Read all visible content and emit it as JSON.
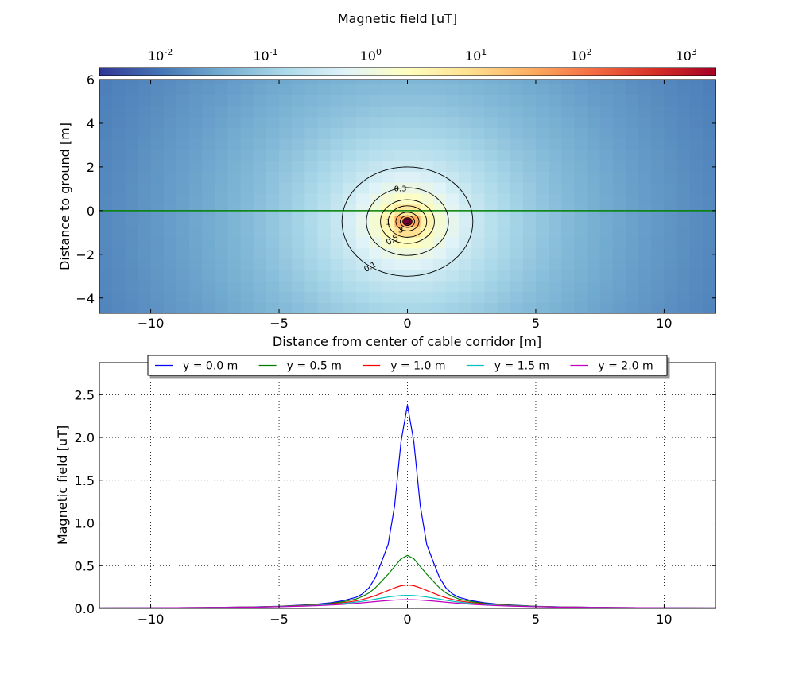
{
  "colorbar": {
    "title": "Magnetic field [uT]",
    "ticks": [
      {
        "base": "10",
        "exp": "-2",
        "value": 0.01
      },
      {
        "base": "10",
        "exp": "-1",
        "value": 0.1
      },
      {
        "base": "10",
        "exp": "0",
        "value": 1
      },
      {
        "base": "10",
        "exp": "1",
        "value": 10
      },
      {
        "base": "10",
        "exp": "2",
        "value": 100
      },
      {
        "base": "10",
        "exp": "3",
        "value": 1000
      }
    ],
    "range": [
      0.0025,
      1800
    ],
    "scale": "log",
    "colormap": [
      "#313695",
      "#4575b4",
      "#74add1",
      "#abd9e9",
      "#e0f3f8",
      "#ffffbf",
      "#fee090",
      "#fdae61",
      "#f46d43",
      "#d73027",
      "#a50026"
    ]
  },
  "chart_data": [
    {
      "type": "heatmap",
      "xlabel": "Distance from center of cable corridor [m]",
      "ylabel": "Distance to ground [m]",
      "xlim": [
        -12,
        12
      ],
      "ylim": [
        -4.7,
        6
      ],
      "xticks": [
        -10,
        -5,
        0,
        5,
        10
      ],
      "yticks": [
        -4,
        -2,
        0,
        2,
        4,
        6
      ],
      "xtick_labels": [
        "−10",
        "−5",
        "0",
        "5",
        "10"
      ],
      "ytick_labels": [
        "−4",
        "−2",
        "0",
        "2",
        "4",
        "6"
      ],
      "field_peak_uT": 1800,
      "field_peak_position": [
        0,
        -0.5
      ],
      "ground_line_y": 0,
      "ground_line_color": "#008000",
      "contours": [
        {
          "level": 0.1,
          "label": "0.1",
          "rx": 2.55,
          "ry": 2.5
        },
        {
          "level": 0.3,
          "label": "0.3",
          "rx": 1.6,
          "ry": 1.55
        },
        {
          "level": 0.5,
          "label": "0.5",
          "rx": 1.05,
          "ry": 1.0
        },
        {
          "level": 1,
          "label": "1",
          "rx": 0.75,
          "ry": 0.72
        },
        {
          "level": 3,
          "label": "3",
          "rx": 0.45,
          "ry": 0.43
        },
        {
          "level": 10,
          "label": "",
          "rx": 0.28,
          "ry": 0.27
        },
        {
          "level": 30,
          "label": "",
          "rx": 0.18,
          "ry": 0.18
        },
        {
          "level": 100,
          "label": "",
          "rx": 0.1,
          "ry": 0.1
        }
      ]
    },
    {
      "type": "line",
      "xlabel": "",
      "ylabel": "Magnetic field [uT]",
      "xlim": [
        -12,
        12
      ],
      "ylim": [
        0,
        2.875
      ],
      "xticks": [
        -10,
        -5,
        0,
        5,
        10
      ],
      "yticks": [
        0,
        0.5,
        1,
        1.5,
        2,
        2.5
      ],
      "xtick_labels": [
        "−10",
        "−5",
        "0",
        "5",
        "10"
      ],
      "ytick_labels": [
        "0.0",
        "0.5",
        "1.0",
        "1.5",
        "2.0",
        "2.5"
      ],
      "grid": true,
      "legend_position": "top-center",
      "x": [
        -12,
        -10,
        -8,
        -6,
        -5,
        -4,
        -3.5,
        -3,
        -2.5,
        -2,
        -1.75,
        -1.5,
        -1.25,
        -1,
        -0.75,
        -0.5,
        -0.25,
        0,
        0.25,
        0.5,
        0.75,
        1,
        1.25,
        1.5,
        1.75,
        2,
        2.5,
        3,
        3.5,
        4,
        5,
        6,
        8,
        10,
        12
      ],
      "series": [
        {
          "name": "y = 0.0 m",
          "color": "#0000ff",
          "values": [
            0.005,
            0.007,
            0.01,
            0.018,
            0.025,
            0.04,
            0.05,
            0.065,
            0.09,
            0.13,
            0.17,
            0.24,
            0.36,
            0.55,
            0.75,
            1.2,
            1.95,
            2.38,
            1.95,
            1.2,
            0.75,
            0.55,
            0.36,
            0.24,
            0.17,
            0.13,
            0.09,
            0.065,
            0.05,
            0.04,
            0.025,
            0.018,
            0.01,
            0.007,
            0.005
          ]
        },
        {
          "name": "y = 0.5 m",
          "color": "#008000",
          "values": [
            0.005,
            0.007,
            0.01,
            0.017,
            0.024,
            0.037,
            0.046,
            0.058,
            0.078,
            0.11,
            0.14,
            0.18,
            0.24,
            0.32,
            0.4,
            0.49,
            0.58,
            0.62,
            0.58,
            0.49,
            0.4,
            0.32,
            0.24,
            0.18,
            0.14,
            0.11,
            0.078,
            0.058,
            0.046,
            0.037,
            0.024,
            0.017,
            0.01,
            0.007,
            0.005
          ]
        },
        {
          "name": "y = 1.0 m",
          "color": "#ff0000",
          "values": [
            0.005,
            0.007,
            0.01,
            0.016,
            0.022,
            0.033,
            0.041,
            0.051,
            0.066,
            0.088,
            0.105,
            0.125,
            0.15,
            0.18,
            0.21,
            0.24,
            0.265,
            0.275,
            0.265,
            0.24,
            0.21,
            0.18,
            0.15,
            0.125,
            0.105,
            0.088,
            0.066,
            0.051,
            0.041,
            0.033,
            0.022,
            0.016,
            0.01,
            0.007,
            0.005
          ]
        },
        {
          "name": "y = 1.5 m",
          "color": "#00bfbf",
          "values": [
            0.005,
            0.007,
            0.01,
            0.015,
            0.021,
            0.03,
            0.037,
            0.045,
            0.057,
            0.073,
            0.083,
            0.095,
            0.108,
            0.121,
            0.133,
            0.143,
            0.15,
            0.152,
            0.15,
            0.143,
            0.133,
            0.121,
            0.108,
            0.095,
            0.083,
            0.073,
            0.057,
            0.045,
            0.037,
            0.03,
            0.021,
            0.015,
            0.01,
            0.007,
            0.005
          ]
        },
        {
          "name": "y = 2.0 m",
          "color": "#bf00bf",
          "values": [
            0.005,
            0.007,
            0.01,
            0.014,
            0.019,
            0.027,
            0.032,
            0.039,
            0.048,
            0.059,
            0.065,
            0.072,
            0.079,
            0.086,
            0.092,
            0.097,
            0.1,
            0.101,
            0.1,
            0.097,
            0.092,
            0.086,
            0.079,
            0.072,
            0.065,
            0.059,
            0.048,
            0.039,
            0.032,
            0.027,
            0.019,
            0.014,
            0.01,
            0.007,
            0.005
          ]
        }
      ]
    }
  ]
}
